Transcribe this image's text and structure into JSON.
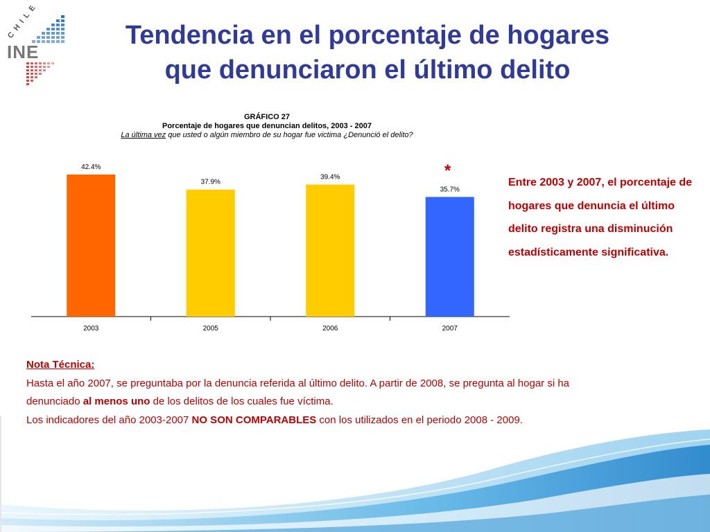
{
  "logo": {
    "country": "CHILE",
    "org": "INE"
  },
  "title_line1": "Tendencia en el porcentaje de hogares",
  "title_line2": "que denunciaron el último delito",
  "chart_header": {
    "line1": "GRÁFICO 27",
    "line2": "Porcentaje de hogares que denuncian delitos, 2003 - 2007",
    "question_underlined": "La última vez",
    "question_rest": " que usted o algún miembro de su hogar fue victima ¿Denunció el delito?"
  },
  "asterisk": "*",
  "summary": "Entre 2003 y 2007, el porcentaje de hogares que denuncia el último delito registra una disminución estadísticamente significativa.",
  "note": {
    "heading": "Nota Técnica:",
    "line1": "Hasta el año 2007, se preguntaba por la denuncia referida al último delito. A partir de 2008, se pregunta al hogar si ha",
    "line2_a": "denunciado ",
    "line2_b": "al menos uno",
    "line2_c": " de los delitos de los cuales fue víctima.",
    "line3_a": "Los indicadores del año 2003-2007 ",
    "line3_b": "NO SON COMPARABLES",
    "line3_c": " con los utilizados en el periodo 2008 - 2009."
  },
  "chart_data": {
    "type": "bar",
    "categories": [
      "2003",
      "2005",
      "2006",
      "2007"
    ],
    "values": [
      42.4,
      37.9,
      39.4,
      35.7
    ],
    "data_labels": [
      "42.4%",
      "37.9%",
      "39.4%",
      "35.7%"
    ],
    "colors": [
      "#ff6600",
      "#ffcc00",
      "#ffcc00",
      "#3366ff"
    ],
    "title": "GRÁFICO 27",
    "subtitle": "Porcentaje de hogares que denuncian delitos, 2003 - 2007",
    "ylim": [
      0,
      49
    ],
    "grid": false,
    "legend": "none"
  },
  "colors": {
    "title": "#2f3a9a",
    "accent": "#c00000",
    "logo_blue": "#1565c0",
    "logo_red": "#d32f2f",
    "wave": "#2a8fd4"
  }
}
